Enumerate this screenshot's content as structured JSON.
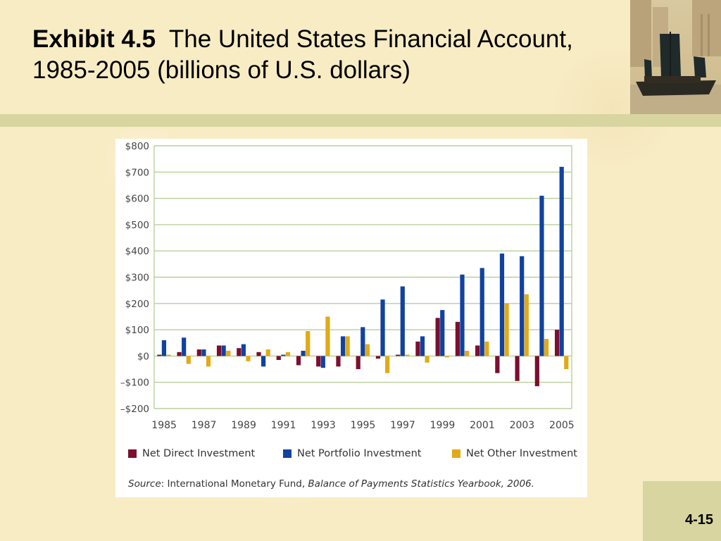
{
  "slide": {
    "title_lead": "Exhibit 4.5",
    "title_rest": "The United States Financial Account, 1985-2005 (billions of U.S. dollars)",
    "slide_number": "4-15"
  },
  "colors": {
    "direct": "#7b0f2e",
    "portfolio": "#1142a0",
    "other": "#e1aa16",
    "gridline": "#b9cf9b",
    "axis_text": "#444444"
  },
  "source": {
    "label": "Source",
    "publisher": ": International Monetary Fund, ",
    "publication": "Balance of Payments Statistics Yearbook, 2006."
  },
  "chart_data": {
    "type": "bar",
    "title": "",
    "xlabel": "",
    "ylabel": "",
    "ylim": [
      -200,
      800
    ],
    "grid": true,
    "legend_placement": "bottom",
    "y_tick_labels": [
      "$800",
      "$700",
      "$600",
      "$500",
      "$400",
      "$300",
      "$200",
      "$100",
      "$0",
      "–$100",
      "–$200"
    ],
    "y_tick_values": [
      800,
      700,
      600,
      500,
      400,
      300,
      200,
      100,
      0,
      -100,
      -200
    ],
    "categories": [
      "1985",
      "1986",
      "1987",
      "1988",
      "1989",
      "1990",
      "1991",
      "1992",
      "1993",
      "1994",
      "1995",
      "1996",
      "1997",
      "1998",
      "1999",
      "2000",
      "2001",
      "2002",
      "2003",
      "2004",
      "2005"
    ],
    "x_tick_labels": [
      "1985",
      "1987",
      "1989",
      "1991",
      "1993",
      "1995",
      "1997",
      "1999",
      "2001",
      "2003",
      "2005"
    ],
    "series": [
      {
        "name": "Net Direct Investment",
        "values": [
          5,
          15,
          25,
          40,
          30,
          15,
          -15,
          -35,
          -40,
          -40,
          -50,
          -10,
          5,
          55,
          145,
          130,
          40,
          -65,
          -95,
          -115,
          100
        ]
      },
      {
        "name": "Net Portfolio Investment",
        "values": [
          60,
          70,
          25,
          40,
          45,
          -40,
          5,
          20,
          -45,
          75,
          110,
          215,
          265,
          75,
          175,
          310,
          335,
          390,
          380,
          610,
          720
        ]
      },
      {
        "name": "Net Other Investment",
        "values": [
          5,
          -30,
          -40,
          20,
          -20,
          25,
          15,
          95,
          150,
          75,
          45,
          -65,
          5,
          -25,
          -5,
          20,
          55,
          200,
          235,
          65,
          -50
        ]
      }
    ]
  }
}
